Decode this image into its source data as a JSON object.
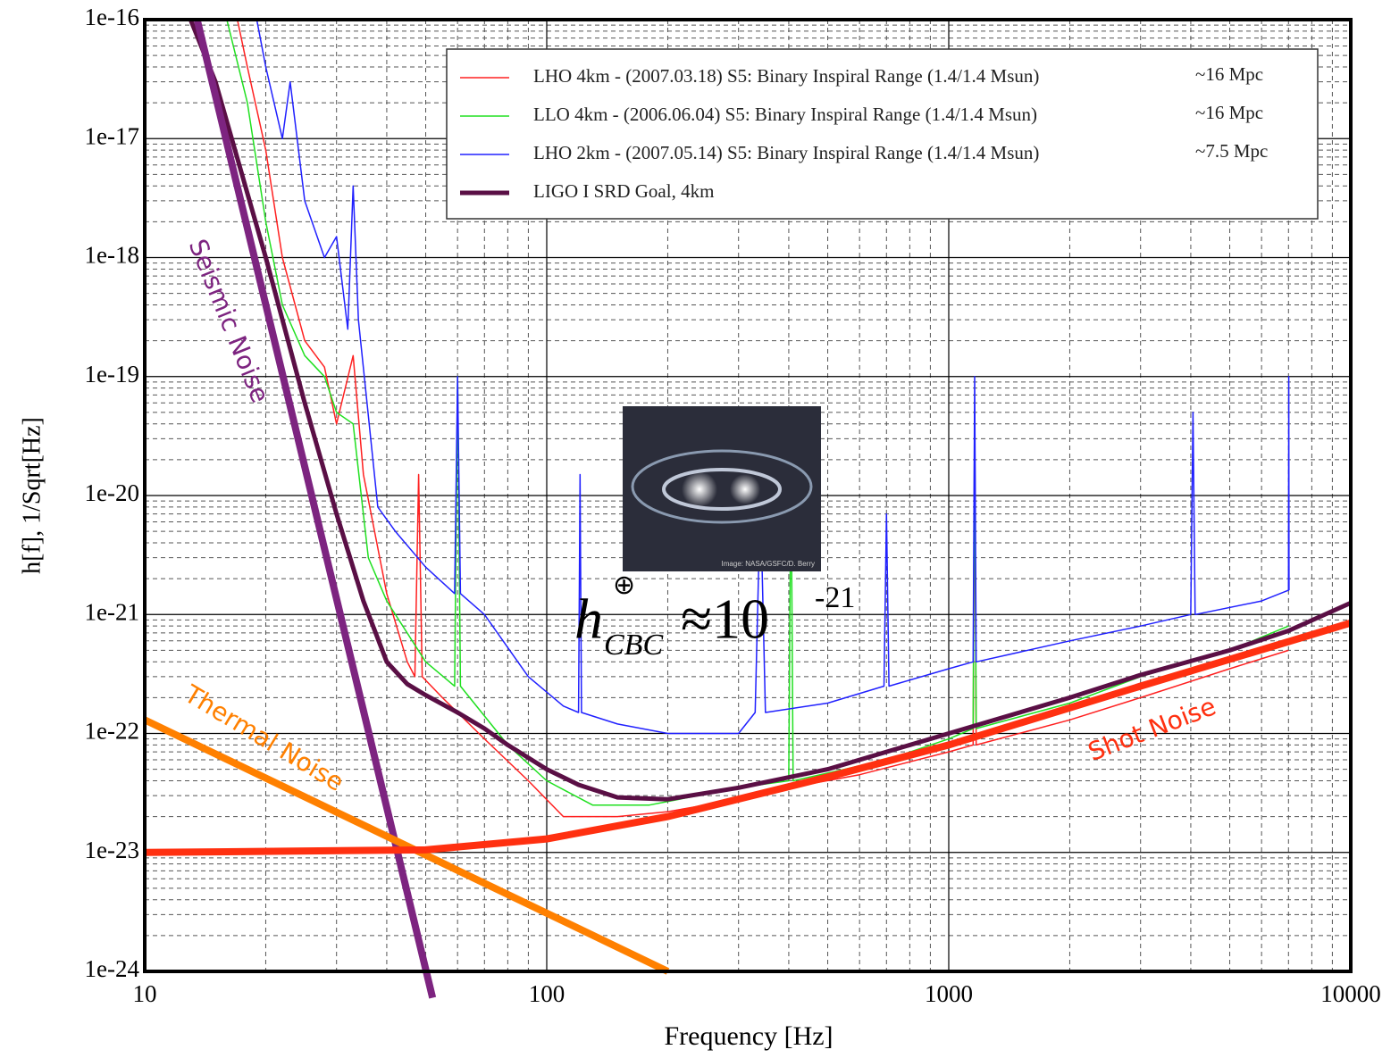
{
  "chart_data": {
    "type": "line",
    "log_x": true,
    "log_y": true,
    "grid": true,
    "x_label": "Frequency [Hz]",
    "y_label": "h[f], 1/Sqrt[Hz]",
    "xlim": [
      10,
      10000
    ],
    "xticks": [
      10,
      100,
      1000,
      10000
    ],
    "ylim": [
      1e-24,
      1e-16
    ],
    "yticks": [
      {
        "value": 1e-24,
        "label": "1e-24"
      },
      {
        "value": 1e-23,
        "label": "1e-23"
      },
      {
        "value": 1e-22,
        "label": "1e-22"
      },
      {
        "value": 1e-21,
        "label": "1e-21"
      },
      {
        "value": 1e-20,
        "label": "1e-20"
      },
      {
        "value": 1e-19,
        "label": "1e-19"
      },
      {
        "value": 1e-18,
        "label": "1e-18"
      },
      {
        "value": 1e-17,
        "label": "1e-17"
      },
      {
        "value": 1e-16,
        "label": "1e-16"
      }
    ],
    "legend_position": "upper right",
    "series": [
      {
        "name": "LHO 4km - (2007.03.18) S5: Binary Inspiral Range (1.4/1.4 Msun)",
        "range": "~16 Mpc",
        "color": "#ff2020",
        "width": 1.5,
        "x": [
          17,
          18,
          20,
          22,
          25,
          28,
          30,
          33,
          35,
          40,
          45,
          47,
          48,
          49,
          55,
          70,
          90,
          110,
          150,
          200,
          300,
          400,
          600,
          1000,
          1150,
          1160,
          1170,
          2000,
          3000,
          5000,
          7000
        ],
        "values": [
          1e-16,
          4e-17,
          8e-18,
          1e-18,
          2e-19,
          1.2e-19,
          4e-20,
          1.5e-19,
          1.5e-20,
          1.5e-21,
          4e-22,
          3e-22,
          1.5e-20,
          3e-22,
          2e-22,
          9e-23,
          4e-23,
          2e-23,
          2e-23,
          2.2e-23,
          2.8e-23,
          3.5e-23,
          4.5e-23,
          7e-23,
          8e-23,
          5e-20,
          8e-23,
          1.3e-22,
          2e-22,
          3.5e-22,
          5e-22
        ]
      },
      {
        "name": "LLO 4km - (2006.06.04) S5: Binary Inspiral Range (1.4/1.4 Msun)",
        "range": "~16 Mpc",
        "color": "#20e020",
        "width": 1.5,
        "x": [
          16,
          18,
          20,
          22,
          25,
          28,
          30,
          33,
          36,
          40,
          50,
          59,
          60,
          61,
          80,
          100,
          130,
          180,
          300,
          400,
          405,
          410,
          700,
          1000,
          1150,
          1160,
          1170,
          2000,
          3000,
          5000,
          7000
        ],
        "values": [
          1e-16,
          2e-17,
          2e-18,
          4e-19,
          1.5e-19,
          1e-19,
          5e-20,
          4e-20,
          3e-21,
          1.3e-21,
          4e-22,
          2.5e-22,
          1e-19,
          2.5e-22,
          8e-23,
          4e-23,
          2.5e-23,
          2.5e-23,
          3.5e-23,
          4e-23,
          2e-20,
          4e-23,
          6e-23,
          9e-23,
          1.1e-22,
          5e-20,
          1.1e-22,
          1.8e-22,
          3e-22,
          5e-22,
          8e-22
        ]
      },
      {
        "name": "LHO 2km - (2007.05.14) S5: Binary Inspiral Range (1.4/1.4 Msun)",
        "range": "~7.5 Mpc",
        "color": "#2020ff",
        "width": 1.5,
        "x": [
          19,
          20,
          22,
          23,
          25,
          28,
          30,
          32,
          33,
          34,
          38,
          42,
          50,
          59,
          60,
          61,
          70,
          90,
          110,
          120,
          121,
          122,
          150,
          200,
          300,
          330,
          340,
          350,
          500,
          690,
          700,
          710,
          1000,
          1150,
          1160,
          1170,
          2000,
          3000,
          4000,
          4050,
          4100,
          6000,
          7000,
          7010,
          7020
        ],
        "values": [
          1e-16,
          4e-17,
          1e-17,
          3e-17,
          3e-18,
          1e-18,
          1.5e-18,
          2.5e-19,
          4e-18,
          3e-19,
          8e-21,
          5e-21,
          2.5e-21,
          1.5e-21,
          1e-19,
          1.5e-21,
          1e-21,
          3e-22,
          1.7e-22,
          1.5e-22,
          1.5e-20,
          1.5e-22,
          1.2e-22,
          1e-22,
          1e-22,
          1.5e-22,
          1e-20,
          1.5e-22,
          1.8e-22,
          2.5e-22,
          7e-21,
          2.5e-22,
          3.5e-22,
          4e-22,
          1e-19,
          4e-22,
          6e-22,
          8e-22,
          1e-21,
          5e-20,
          1e-21,
          1.3e-21,
          1.6e-21,
          1e-19,
          1.6e-21
        ]
      },
      {
        "name": "LIGO I SRD Goal, 4km",
        "color": "#5a0f45",
        "width": 5,
        "x": [
          13,
          15,
          20,
          25,
          30,
          35,
          40,
          45,
          50,
          60,
          70,
          80,
          100,
          120,
          150,
          200,
          300,
          500,
          700,
          1000,
          2000,
          3000,
          5000,
          7000,
          10000
        ],
        "values": [
          1e-16,
          3e-17,
          1e-18,
          6e-20,
          7e-21,
          1.3e-21,
          4e-22,
          2.6e-22,
          2.1e-22,
          1.5e-22,
          1.1e-22,
          8e-23,
          5e-23,
          3.7e-23,
          2.9e-23,
          2.8e-23,
          3.5e-23,
          5e-23,
          7e-23,
          1e-22,
          2e-22,
          3.1e-22,
          5e-22,
          7.3e-22,
          1.25e-21
        ]
      }
    ],
    "noise_curves": [
      {
        "label": "Seismic Noise",
        "color": "#7d2480",
        "x": [
          13.5,
          52
        ],
        "values": [
          1e-16,
          6e-25
        ]
      },
      {
        "label": "Thermal Noise",
        "color": "#ff8000",
        "x": [
          10,
          200
        ],
        "values": [
          1.3e-22,
          1e-24
        ]
      },
      {
        "label": "Shot Noise",
        "color": "#ff3010",
        "x": [
          10,
          50,
          100,
          200,
          500,
          1000,
          3000,
          10000
        ],
        "values": [
          1e-23,
          1.05e-23,
          1.3e-23,
          2e-23,
          4.3e-23,
          8e-23,
          2.5e-22,
          8.5e-22
        ]
      }
    ],
    "formula": {
      "h": "h",
      "sup": "⊕",
      "sub": "CBC",
      "approx": "≈10",
      "exponent": "-21"
    },
    "image_credit": "Image: NASA/GSFC/D. Berry"
  }
}
